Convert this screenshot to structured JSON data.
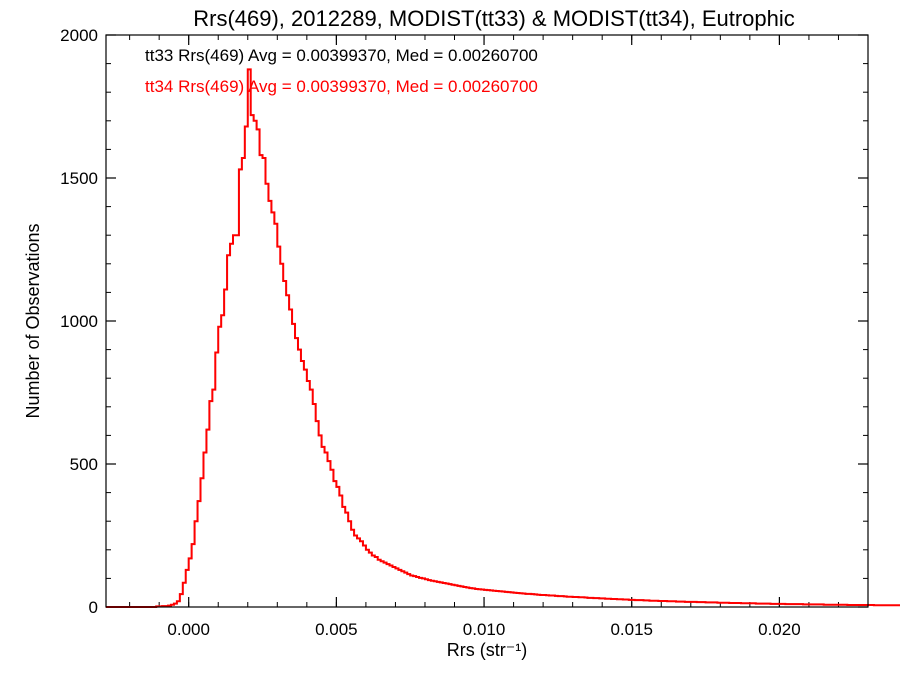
{
  "chart_data": {
    "type": "line",
    "title": "Rrs(469), 2012289, MODIST(tt33) & MODIST(tt34), Eutrophic",
    "xlabel": "Rrs (str⁻¹)",
    "ylabel": "Number of Observations",
    "xlim": [
      -0.0028,
      0.023
    ],
    "ylim": [
      0,
      2000
    ],
    "xticks": [
      0.0,
      0.005,
      0.01,
      0.015,
      0.02
    ],
    "xtick_labels": [
      "0.000",
      "0.005",
      "0.010",
      "0.015",
      "0.020"
    ],
    "yticks": [
      0,
      500,
      1000,
      1500,
      2000
    ],
    "ytick_labels": [
      "0",
      "500",
      "1000",
      "1500",
      "2000"
    ],
    "bin_width": 0.0001,
    "x_start": -0.0028,
    "series": [
      {
        "name": "tt33",
        "color": "#000000",
        "annotation": "tt33 Rrs(469) Avg = 0.00399370, Med = 0.00260700",
        "values": [
          0,
          0,
          0,
          0,
          0,
          0,
          0,
          0,
          0,
          0,
          0,
          0,
          0,
          0,
          0,
          0,
          0,
          2,
          2,
          3,
          3,
          5,
          8,
          12,
          20,
          45,
          85,
          130,
          170,
          220,
          300,
          370,
          450,
          540,
          620,
          720,
          760,
          890,
          980,
          1020,
          1110,
          1230,
          1270,
          1300,
          1300,
          1530,
          1570,
          1680,
          1880,
          1720,
          1700,
          1670,
          1580,
          1570,
          1480,
          1420,
          1380,
          1340,
          1260,
          1200,
          1140,
          1090,
          1040,
          990,
          940,
          900,
          860,
          830,
          790,
          760,
          710,
          650,
          600,
          560,
          540,
          510,
          480,
          440,
          420,
          390,
          350,
          330,
          300,
          270,
          250,
          240,
          230,
          215,
          200,
          190,
          180,
          175,
          165,
          160,
          155,
          150,
          145,
          140,
          135,
          130,
          125,
          120,
          115,
          110,
          108,
          105,
          102,
          100,
          97,
          94,
          92,
          90,
          88,
          86,
          84,
          82,
          80,
          78,
          76,
          74,
          72,
          70,
          68,
          66,
          65,
          63,
          62,
          61,
          60,
          59,
          58,
          57,
          56,
          55,
          54,
          53,
          52,
          51,
          50,
          49,
          48,
          47,
          46,
          46,
          45,
          44,
          43,
          42,
          42,
          41,
          40,
          40,
          39,
          38,
          38,
          37,
          36,
          36,
          35,
          35,
          34,
          34,
          33,
          32,
          32,
          31,
          31,
          30,
          30,
          29,
          29,
          28,
          28,
          27,
          27,
          26,
          26,
          25,
          25,
          24,
          24,
          24,
          23,
          23,
          22,
          22,
          22,
          21,
          21,
          21,
          20,
          20,
          20,
          19,
          19,
          19,
          18,
          18,
          18,
          18,
          17,
          17,
          17,
          16,
          16,
          16,
          16,
          15,
          15,
          15,
          15,
          14,
          14,
          14,
          14,
          13,
          13,
          13,
          13,
          13,
          12,
          12,
          12,
          12,
          12,
          11,
          11,
          11,
          11,
          11,
          10,
          10,
          10,
          10,
          10,
          10,
          9,
          9,
          9,
          9,
          9,
          9,
          9,
          8,
          8,
          8,
          8,
          8,
          8,
          8,
          8,
          7,
          7,
          7,
          7,
          7,
          7,
          7,
          7,
          7,
          6,
          6,
          6,
          6,
          6,
          6,
          6,
          6,
          6,
          6,
          6,
          5,
          5,
          5,
          5,
          5,
          5,
          5,
          5,
          5,
          5,
          5,
          5,
          5
        ]
      },
      {
        "name": "tt34",
        "color": "#ff0000",
        "annotation": "tt34 Rrs(469) Avg = 0.00399370, Med = 0.00260700",
        "values": [
          0,
          0,
          0,
          0,
          0,
          0,
          0,
          0,
          0,
          0,
          0,
          0,
          0,
          0,
          0,
          0,
          0,
          2,
          2,
          3,
          3,
          5,
          8,
          12,
          20,
          45,
          85,
          130,
          170,
          220,
          300,
          370,
          450,
          540,
          620,
          720,
          760,
          890,
          980,
          1020,
          1110,
          1230,
          1270,
          1300,
          1300,
          1530,
          1570,
          1680,
          1880,
          1720,
          1700,
          1670,
          1580,
          1570,
          1480,
          1420,
          1380,
          1340,
          1260,
          1200,
          1140,
          1090,
          1040,
          990,
          940,
          900,
          860,
          830,
          790,
          760,
          710,
          650,
          600,
          560,
          540,
          510,
          480,
          440,
          420,
          390,
          350,
          330,
          300,
          270,
          250,
          240,
          230,
          215,
          200,
          190,
          180,
          175,
          165,
          160,
          155,
          150,
          145,
          140,
          135,
          130,
          125,
          120,
          115,
          110,
          108,
          105,
          102,
          100,
          97,
          94,
          92,
          90,
          88,
          86,
          84,
          82,
          80,
          78,
          76,
          74,
          72,
          70,
          68,
          66,
          65,
          63,
          62,
          61,
          60,
          59,
          58,
          57,
          56,
          55,
          54,
          53,
          52,
          51,
          50,
          49,
          48,
          47,
          46,
          46,
          45,
          44,
          43,
          42,
          42,
          41,
          40,
          40,
          39,
          38,
          38,
          37,
          36,
          36,
          35,
          35,
          34,
          34,
          33,
          32,
          32,
          31,
          31,
          30,
          30,
          29,
          29,
          28,
          28,
          27,
          27,
          26,
          26,
          25,
          25,
          24,
          24,
          24,
          23,
          23,
          22,
          22,
          22,
          21,
          21,
          21,
          20,
          20,
          20,
          19,
          19,
          19,
          18,
          18,
          18,
          18,
          17,
          17,
          17,
          16,
          16,
          16,
          16,
          15,
          15,
          15,
          15,
          14,
          14,
          14,
          14,
          13,
          13,
          13,
          13,
          13,
          12,
          12,
          12,
          12,
          12,
          11,
          11,
          11,
          11,
          11,
          10,
          10,
          10,
          10,
          10,
          10,
          9,
          9,
          9,
          9,
          9,
          9,
          9,
          8,
          8,
          8,
          8,
          8,
          8,
          8,
          8,
          7,
          7,
          7,
          7,
          7,
          7,
          7,
          7,
          7,
          6,
          6,
          6,
          6,
          6,
          6,
          6,
          6,
          6,
          6,
          6,
          5,
          5,
          5,
          5,
          5,
          5,
          5,
          5,
          5,
          5,
          5,
          5,
          5
        ]
      }
    ]
  }
}
